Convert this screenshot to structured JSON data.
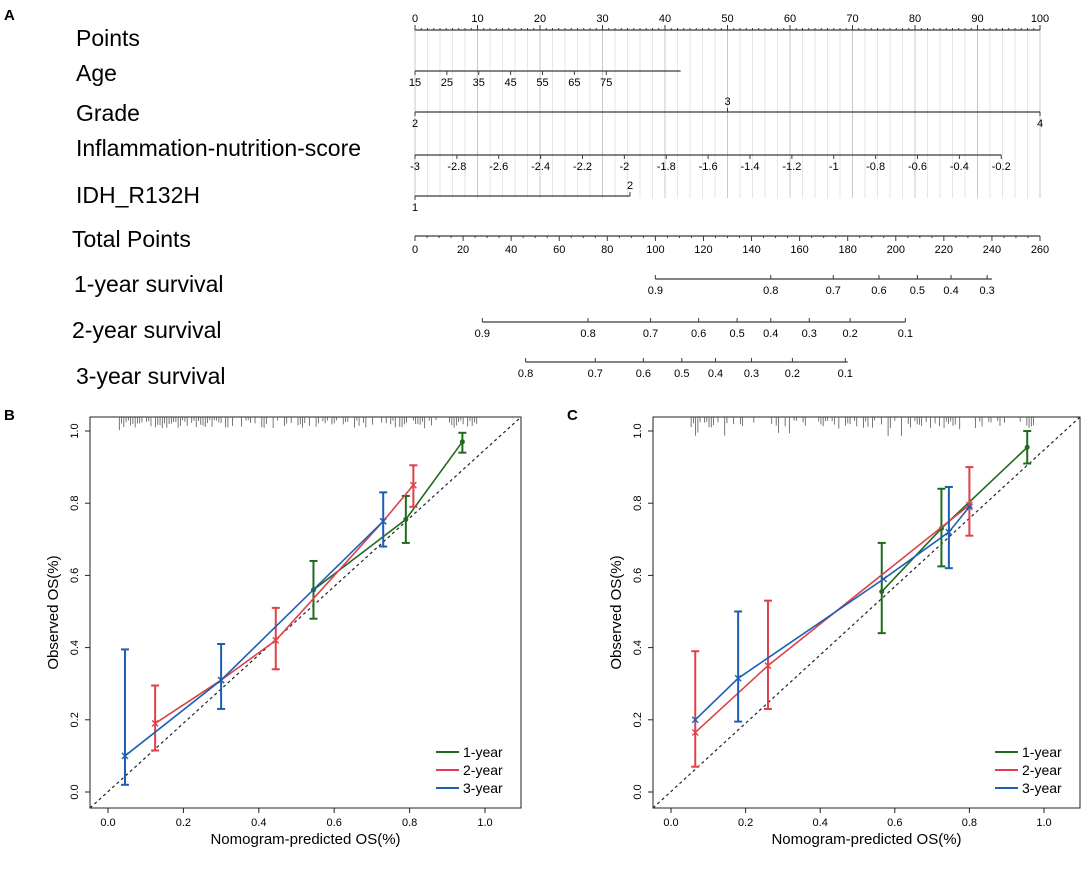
{
  "panel_labels": {
    "a": "A",
    "b": "B",
    "c": "C"
  },
  "chart_data": [
    {
      "type": "nomogram",
      "id": "A",
      "rows": [
        {
          "label": "Points",
          "ticks": [
            {
              "t": "0",
              "p": 0
            },
            {
              "t": "10",
              "p": 10
            },
            {
              "t": "20",
              "p": 20
            },
            {
              "t": "30",
              "p": 30
            },
            {
              "t": "40",
              "p": 40
            },
            {
              "t": "50",
              "p": 50
            },
            {
              "t": "60",
              "p": 60
            },
            {
              "t": "70",
              "p": 70
            },
            {
              "t": "80",
              "p": 80
            },
            {
              "t": "90",
              "p": 90
            },
            {
              "t": "100",
              "p": 100
            }
          ]
        },
        {
          "label": "Age",
          "ticks": [
            {
              "t": "15",
              "p": 0
            },
            {
              "t": "25",
              "p": 5.1
            },
            {
              "t": "35",
              "p": 10.2
            },
            {
              "t": "45",
              "p": 15.3
            },
            {
              "t": "55",
              "p": 20.4
            },
            {
              "t": "65",
              "p": 25.5
            },
            {
              "t": "75",
              "p": 30.6
            }
          ],
          "line_end": 42.5
        },
        {
          "label": "Grade",
          "ticks": [
            {
              "t": "2",
              "p": 0,
              "pos": "below"
            },
            {
              "t": "3",
              "p": 50,
              "pos": "above"
            },
            {
              "t": "4",
              "p": 100,
              "pos": "below"
            }
          ]
        },
        {
          "label": "Inflammation-nutrition-score",
          "ticks": [
            {
              "t": "-3",
              "p": 0
            },
            {
              "t": "-2.8",
              "p": 6.7
            },
            {
              "t": "-2.6",
              "p": 13.4
            },
            {
              "t": "-2.4",
              "p": 20.1
            },
            {
              "t": "-2.2",
              "p": 26.8
            },
            {
              "t": "-2",
              "p": 33.5
            },
            {
              "t": "-1.8",
              "p": 40.2
            },
            {
              "t": "-1.6",
              "p": 46.9
            },
            {
              "t": "-1.4",
              "p": 53.6
            },
            {
              "t": "-1.2",
              "p": 60.3
            },
            {
              "t": "-1",
              "p": 67
            },
            {
              "t": "-0.8",
              "p": 73.7
            },
            {
              "t": "-0.6",
              "p": 80.4
            },
            {
              "t": "-0.4",
              "p": 87.1
            },
            {
              "t": "-0.2",
              "p": 93.8
            }
          ]
        },
        {
          "label": "IDH_R132H",
          "ticks": [
            {
              "t": "1",
              "p": 0,
              "pos": "below"
            },
            {
              "t": "2",
              "p": 34.4,
              "pos": "above"
            }
          ]
        }
      ],
      "total_points": {
        "label": "Total Points",
        "ticks": [
          "0",
          "20",
          "40",
          "60",
          "80",
          "100",
          "120",
          "140",
          "160",
          "180",
          "200",
          "220",
          "240",
          "260"
        ],
        "max": 260
      },
      "survival": [
        {
          "label": "1-year survival",
          "ticks": [
            {
              "t": "0.9",
              "tp": 100
            },
            {
              "t": "0.8",
              "tp": 148
            },
            {
              "t": "0.7",
              "tp": 174
            },
            {
              "t": "0.6",
              "tp": 193
            },
            {
              "t": "0.5",
              "tp": 209
            },
            {
              "t": "0.4",
              "tp": 223
            },
            {
              "t": "0.3",
              "tp": 238
            }
          ],
          "range": [
            100,
            240
          ]
        },
        {
          "label": "2-year survival",
          "ticks": [
            {
              "t": "0.9",
              "tp": 28
            },
            {
              "t": "0.8",
              "tp": 72
            },
            {
              "t": "0.7",
              "tp": 98
            },
            {
              "t": "0.6",
              "tp": 118
            },
            {
              "t": "0.5",
              "tp": 134
            },
            {
              "t": "0.4",
              "tp": 148
            },
            {
              "t": "0.3",
              "tp": 164
            },
            {
              "t": "0.2",
              "tp": 181
            },
            {
              "t": "0.1",
              "tp": 204
            }
          ],
          "range": [
            28,
            204
          ]
        },
        {
          "label": "3-year survival",
          "ticks": [
            {
              "t": "0.8",
              "tp": 46
            },
            {
              "t": "0.7",
              "tp": 75
            },
            {
              "t": "0.6",
              "tp": 95
            },
            {
              "t": "0.5",
              "tp": 111
            },
            {
              "t": "0.4",
              "tp": 125
            },
            {
              "t": "0.3",
              "tp": 140
            },
            {
              "t": "0.2",
              "tp": 157
            },
            {
              "t": "0.1",
              "tp": 179
            }
          ],
          "range": [
            46,
            180
          ]
        }
      ]
    },
    {
      "type": "line",
      "id": "B",
      "xlabel": "Nomogram-predicted OS(%)",
      "ylabel": "Observed OS(%)",
      "xlim": [
        0,
        1
      ],
      "ylim": [
        0,
        1
      ],
      "xticks": [
        "0.0",
        "0.2",
        "0.4",
        "0.6",
        "0.8",
        "1.0"
      ],
      "yticks": [
        "0.0",
        "0.2",
        "0.4",
        "0.6",
        "0.8",
        "1.0"
      ],
      "legend": "bottom-right",
      "series": [
        {
          "name": "1-year",
          "color": "#1e6b1e",
          "marker": "dot",
          "points": [
            {
              "x": 0.545,
              "y": 0.56,
              "lo": 0.48,
              "hi": 0.64
            },
            {
              "x": 0.79,
              "y": 0.755,
              "lo": 0.69,
              "hi": 0.82
            },
            {
              "x": 0.94,
              "y": 0.97,
              "lo": 0.94,
              "hi": 0.995
            }
          ]
        },
        {
          "name": "2-year",
          "color": "#e0404a",
          "marker": "x",
          "points": [
            {
              "x": 0.125,
              "y": 0.19,
              "lo": 0.115,
              "hi": 0.295
            },
            {
              "x": 0.3,
              "y": 0.31
            },
            {
              "x": 0.445,
              "y": 0.42,
              "lo": 0.34,
              "hi": 0.51
            },
            {
              "x": 0.73,
              "y": 0.75
            },
            {
              "x": 0.81,
              "y": 0.85,
              "lo": 0.79,
              "hi": 0.905
            }
          ]
        },
        {
          "name": "3-year",
          "color": "#1b5fb4",
          "marker": "x",
          "points": [
            {
              "x": 0.045,
              "y": 0.1,
              "lo": 0.02,
              "hi": 0.395
            },
            {
              "x": 0.3,
              "y": 0.31,
              "lo": 0.23,
              "hi": 0.41
            },
            {
              "x": 0.73,
              "y": 0.75,
              "lo": 0.68,
              "hi": 0.83
            }
          ]
        }
      ]
    },
    {
      "type": "line",
      "id": "C",
      "xlabel": "Nomogram-predicted OS(%)",
      "ylabel": "Observed OS(%)",
      "xlim": [
        0,
        1
      ],
      "ylim": [
        0,
        1
      ],
      "xticks": [
        "0.0",
        "0.2",
        "0.4",
        "0.6",
        "0.8",
        "1.0"
      ],
      "yticks": [
        "0.0",
        "0.2",
        "0.4",
        "0.6",
        "0.8",
        "1.0"
      ],
      "legend": "bottom-right",
      "series": [
        {
          "name": "1-year",
          "color": "#1e6b1e",
          "marker": "dot",
          "points": [
            {
              "x": 0.565,
              "y": 0.555,
              "lo": 0.44,
              "hi": 0.69
            },
            {
              "x": 0.725,
              "y": 0.73,
              "lo": 0.625,
              "hi": 0.84
            },
            {
              "x": 0.955,
              "y": 0.955,
              "lo": 0.91,
              "hi": 1.0
            }
          ]
        },
        {
          "name": "2-year",
          "color": "#e0404a",
          "marker": "x",
          "points": [
            {
              "x": 0.065,
              "y": 0.165,
              "lo": 0.07,
              "hi": 0.39
            },
            {
              "x": 0.26,
              "y": 0.35,
              "lo": 0.23,
              "hi": 0.53
            },
            {
              "x": 0.8,
              "y": 0.795,
              "lo": 0.71,
              "hi": 0.9
            }
          ]
        },
        {
          "name": "3-year",
          "color": "#1b5fb4",
          "marker": "x",
          "points": [
            {
              "x": 0.065,
              "y": 0.2
            },
            {
              "x": 0.18,
              "y": 0.315,
              "lo": 0.195,
              "hi": 0.5
            },
            {
              "x": 0.57,
              "y": 0.59
            },
            {
              "x": 0.745,
              "y": 0.72,
              "lo": 0.62,
              "hi": 0.845
            },
            {
              "x": 0.8,
              "y": 0.79
            }
          ]
        }
      ]
    }
  ]
}
